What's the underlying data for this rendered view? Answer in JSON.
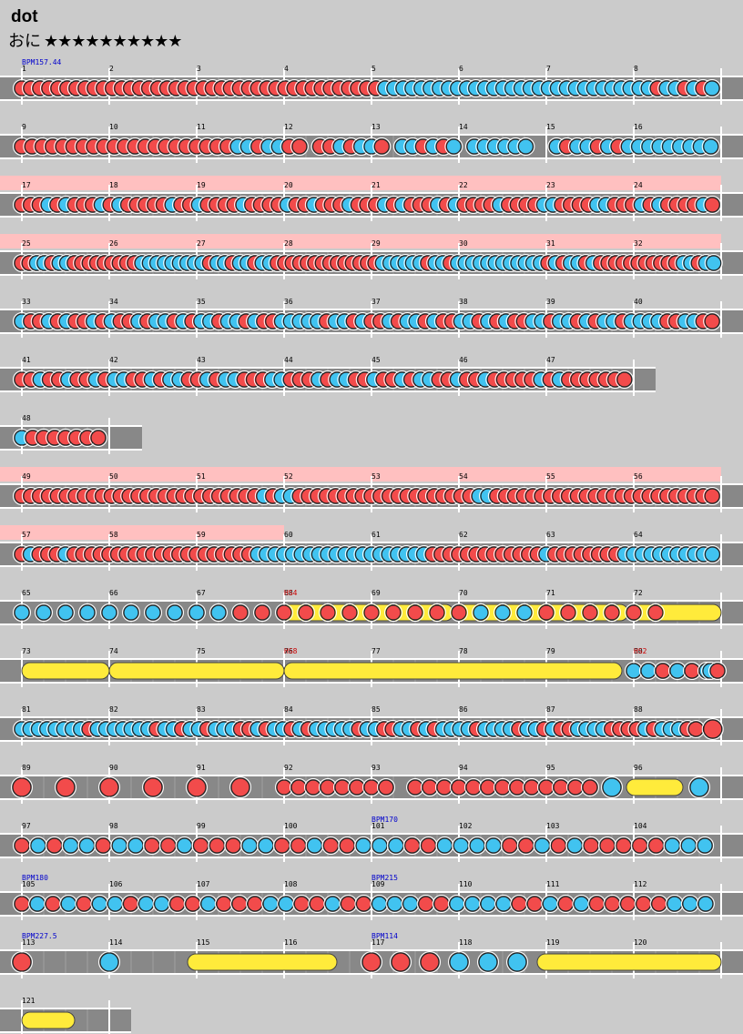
{
  "song": {
    "title": "dot",
    "course": "おに",
    "stars": "★★★★★★★★★★"
  },
  "colors": {
    "don": "#f24b4b",
    "ka": "#41c3f0",
    "roll": "#ffeb3b",
    "gogo": "#ffc0c0",
    "lane": "#888888",
    "bpm_text": "#0000cc",
    "hs_text": "#cc0000"
  },
  "annotations": [
    {
      "measure": 1,
      "text": "BPM157.44",
      "kind": "bpm"
    },
    {
      "measure": 68,
      "text": "HS4",
      "kind": "hs"
    },
    {
      "measure": 76,
      "text": "HS8",
      "kind": "hs"
    },
    {
      "measure": 80,
      "text": "HS2",
      "kind": "hs"
    },
    {
      "measure": 101,
      "text": "BPM170",
      "kind": "bpm"
    },
    {
      "measure": 105,
      "text": "BPM180",
      "kind": "bpm"
    },
    {
      "measure": 109,
      "text": "BPM215",
      "kind": "bpm"
    },
    {
      "measure": 113,
      "text": "BPM227.5",
      "kind": "bpm"
    },
    {
      "measure": 117,
      "text": "BPM114",
      "kind": "bpm"
    }
  ],
  "rows": [
    {
      "measures": [
        1,
        2,
        3,
        4,
        5,
        6,
        7,
        8
      ],
      "gogo": 0,
      "notes": "rrrrrrrrrrrrrrrrrrrrrrrrrrrrrrrrrrrrrrrrbbbbbbbbbbbbbbbbbbbbbbbbbbbbbbrbbrbrb"
    },
    {
      "measures": [
        9,
        10,
        11,
        12,
        13,
        14,
        15,
        16
      ],
      "gogo": 0,
      "notes": "rrrrrrrrrrrrrrrrrrrrrbbrbbrr-rrbrbbr-bbrbrb-bbbbbb--brbbrbrbbbbbbbbb"
    },
    {
      "measures": [
        17,
        18,
        19,
        20,
        21,
        22,
        23,
        24
      ],
      "gogo": 8,
      "notes": "rrrbrbrrrbrbrrrrrbrrbrrrrbrrrrbrrbrrrbrrrbrbrrrbrbrrrrbrrrrbbrrrrbbrrrbrbrrrrbr"
    },
    {
      "measures": [
        25,
        26,
        27,
        28,
        29,
        30,
        31,
        32
      ],
      "gogo": 8,
      "notes": "rrbbrbbrrrrrrrrrbbbbbbbbbrbbrbbrbbrrrrrrrrrrrrrrbbbbbbrbbrbbbbbbbbbbbbrbrbbrbrrrrrrrrrrrbbrbb"
    },
    {
      "measures": [
        33,
        34,
        35,
        36,
        37,
        38,
        39,
        40
      ],
      "gogo": 0,
      "notes": "brrbrbrrbrbrrbrbbrbrbbrbbrbrrbbbbbrbbrbrrbrbbrbrrbbrbrbrrbbrbbrbrbbrbbbbrrbbrr"
    },
    {
      "measures": [
        41,
        42,
        43,
        44,
        45,
        46,
        47
      ],
      "gogo": 0,
      "notes": "rrbrrbrrbrbbrrbrbbrrbrbbrrrbbrrrbrbbrrbrrbrbbrrbrrbrrrrrbrbrrrrrrr"
    },
    {
      "measures": [
        48
      ],
      "gogo": 0,
      "notes": "brrrrrrr"
    },
    {
      "measures": [
        49,
        50,
        51,
        52,
        53,
        54,
        55,
        56
      ],
      "gogo": 8,
      "notes": "rrrrrrrrrrrrrrrrrrrrrrrrrrrbrbbrrrrrrrrrrrrrrrrrrrrbbrrrrrrrrrrrrrrrrrrrrrrrrr"
    },
    {
      "measures": [
        57,
        58,
        59,
        60,
        61,
        62,
        63,
        64
      ],
      "gogo": 3,
      "notes": "rbrrrbrrrrrrrrrrrrrrrrrrrrrbbbbbbbbbbbbbbbbbbbbrrrrrrrrrrrrrbrrrrrrrrbbbbbbbbbbb"
    },
    {
      "measures": [
        65,
        66,
        67,
        68,
        69,
        70,
        71,
        72
      ],
      "gogo": 0,
      "notes": "bbbbbbbbbbrrrrrrrrrrrbbbrrrrrr"
    },
    {
      "measures": [
        73,
        74,
        75,
        76,
        77,
        78,
        79,
        80
      ],
      "gogo": 0,
      "notes": "bbrbrbbr"
    },
    {
      "measures": [
        81,
        82,
        83,
        84,
        85,
        86,
        87,
        88
      ],
      "gogo": 0,
      "notes": "bbbbbbbbrbbbbbbbrbbrbbrbbbrrbrbbrbrbbbbbrbbrrbbrbrbbbbrbbbbrbbrbrrbbbbrrrrbrbbbrr-r"
    },
    {
      "measures": [
        89,
        90,
        91,
        92,
        93,
        94,
        95,
        96
      ],
      "gogo": 0,
      "notes": "r-r-r-r-r-r-rrrrrrrrrrrrrrrrrrrrrbb"
    },
    {
      "measures": [
        97,
        98,
        99,
        100,
        101,
        102,
        103,
        104
      ],
      "gogo": 0,
      "notes": "rbrbbrbbrrbrrrbbrrbrrbbbrrbbbbrrbrbrrrrrbbb"
    },
    {
      "measures": [
        105,
        106,
        107,
        108,
        109,
        110,
        111,
        112
      ],
      "gogo": 0,
      "notes": "rbrbrbbrbbrrbrrrbbrrbrrbbbrrbbbbrrbrbrrrrrbbb"
    },
    {
      "measures": [
        113,
        114,
        115,
        116,
        117,
        118,
        119,
        120
      ],
      "gogo": 0,
      "notes": "rbrrrbbb"
    },
    {
      "measures": [
        121
      ],
      "gogo": 0,
      "notes": ""
    }
  ]
}
